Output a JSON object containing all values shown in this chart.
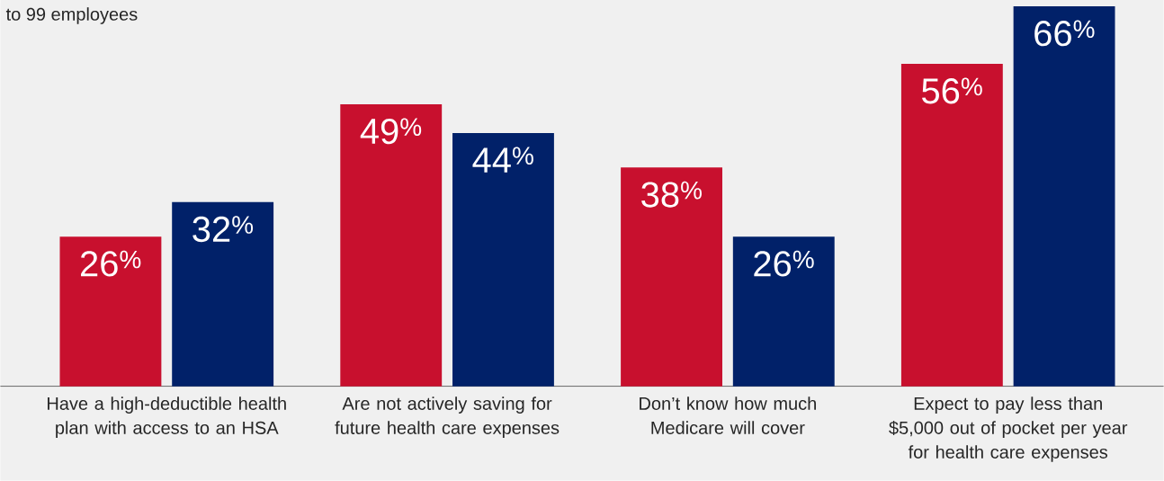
{
  "chart_data": {
    "type": "bar",
    "categories": [
      "Have a high-deductible health plan with access to an HSA",
      "Are not actively saving for future health care expenses",
      "Don’t know how much Medicare will cover",
      "Expect to pay less than $5,000 out of pocket per year for health care expenses"
    ],
    "series": [
      {
        "color": "#c8102e",
        "values": [
          26,
          49,
          38,
          56
        ],
        "value_labels": [
          "26$^{%}$",
          "49$^{%}$",
          "38$^{%}$",
          "56$^{%}$"
        ]
      },
      {
        "color": "#012169",
        "values": [
          32,
          44,
          26,
          66
        ],
        "value_labels": [
          "32$^{%}$",
          "44$^{%}$",
          "26$^{%}$",
          "66$^{%}$"
        ]
      }
    ],
    "annotations": [
      "to 99 employees"
    ]
  }
}
